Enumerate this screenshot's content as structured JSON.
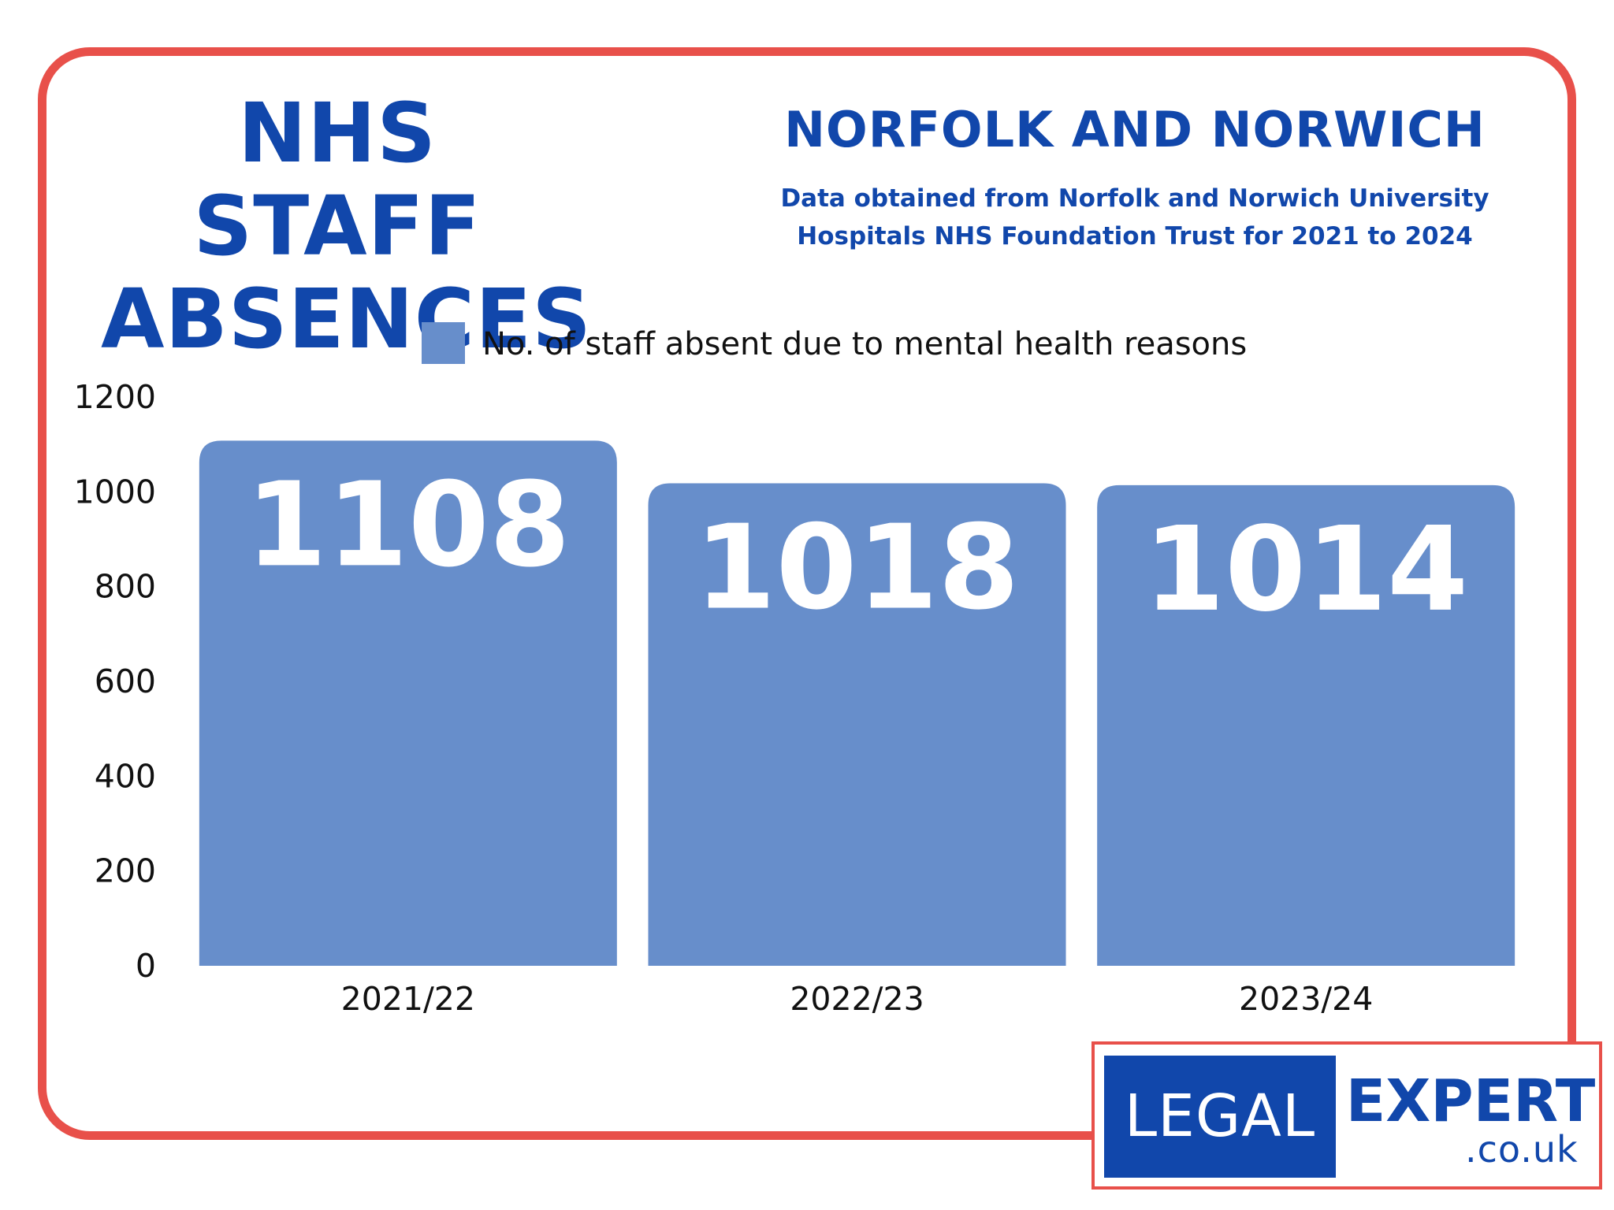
{
  "header": {
    "title_line1": "NHS STAFF",
    "title_line2": "ABSENCES",
    "region": "NORFOLK AND NORWICH",
    "subtitle_line1": "Data obtained from Norfolk and Norwich University",
    "subtitle_line2": "Hospitals NHS Foundation Trust for 2021 to 2024"
  },
  "colors": {
    "brand_blue": "#1147ab",
    "bar": "#678ecb",
    "frame": "#e8504a"
  },
  "logo": {
    "left_text": "LEGAL",
    "right_text": "EXPERT",
    "domain_text": ".co.uk"
  },
  "chart_data": {
    "type": "bar",
    "title": "",
    "xlabel": "",
    "ylabel": "",
    "categories": [
      "2021/22",
      "2022/23",
      "2023/24"
    ],
    "series": [
      {
        "name": "No. of staff absent due to mental health reasons",
        "values": [
          1108,
          1018,
          1014
        ],
        "color": "#678ecb"
      }
    ],
    "data_labels": [
      "1108",
      "1018",
      "1014"
    ],
    "ylim": [
      0,
      1200
    ],
    "yticks": [
      0,
      200,
      400,
      600,
      800,
      1000,
      1200
    ],
    "ytick_labels": [
      "0",
      "200",
      "400",
      "600",
      "800",
      "1000",
      "1200"
    ],
    "grid": false,
    "legend": "top"
  }
}
